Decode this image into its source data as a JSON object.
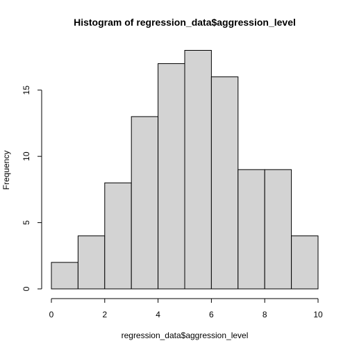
{
  "chart_data": {
    "type": "bar",
    "title": "Histogram of regression_data$aggression_level",
    "xlabel": "regression_data$aggression_level",
    "ylabel": "Frequency",
    "bins": [
      {
        "from": 0,
        "to": 1,
        "count": 2
      },
      {
        "from": 1,
        "to": 2,
        "count": 4
      },
      {
        "from": 2,
        "to": 3,
        "count": 8
      },
      {
        "from": 3,
        "to": 4,
        "count": 13
      },
      {
        "from": 4,
        "to": 5,
        "count": 17
      },
      {
        "from": 5,
        "to": 6,
        "count": 18
      },
      {
        "from": 6,
        "to": 7,
        "count": 16
      },
      {
        "from": 7,
        "to": 8,
        "count": 9
      },
      {
        "from": 8,
        "to": 9,
        "count": 9
      },
      {
        "from": 9,
        "to": 10,
        "count": 4
      }
    ],
    "xticks": [
      0,
      2,
      4,
      6,
      8,
      10
    ],
    "yticks": [
      0,
      5,
      10,
      15
    ],
    "xlim": [
      0,
      10
    ],
    "ylim": [
      0,
      18
    ],
    "grid": false,
    "bar_fill": "#d3d3d3",
    "bar_stroke": "#000000"
  }
}
